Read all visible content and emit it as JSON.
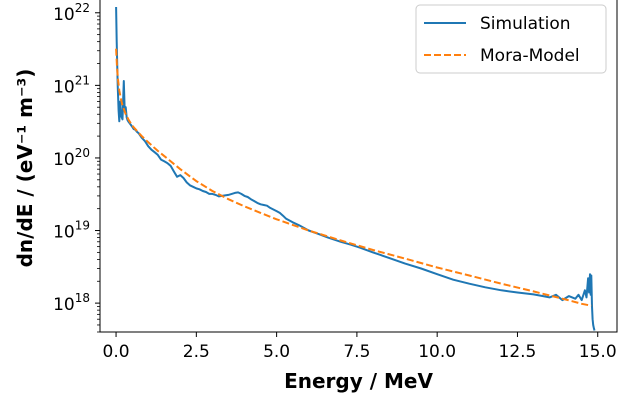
{
  "chart_data": {
    "type": "line",
    "title": "",
    "xlabel": "Energy / MeV",
    "ylabel": "dn/dE / (eV⁻¹ m⁻³)",
    "x_scale": "linear",
    "y_scale": "log",
    "xlim": [
      -0.5,
      15.6
    ],
    "ylim": [
      4e+17,
      1.5e+22
    ],
    "x_ticks": [
      0.0,
      2.5,
      5.0,
      7.5,
      10.0,
      12.5,
      15.0
    ],
    "x_tick_labels": [
      "0.0",
      "2.5",
      "5.0",
      "7.5",
      "10.0",
      "12.5",
      "15.0"
    ],
    "y_ticks": [
      {
        "value": 1e+18,
        "base": "10",
        "exp": "18"
      },
      {
        "value": 1e+19,
        "base": "10",
        "exp": "19"
      },
      {
        "value": 1e+20,
        "base": "10",
        "exp": "20"
      },
      {
        "value": 1e+21,
        "base": "10",
        "exp": "21"
      },
      {
        "value": 1e+22,
        "base": "10",
        "exp": "22"
      }
    ],
    "grid": false,
    "legend": {
      "position": "top-right",
      "entries": [
        {
          "name": "Simulation",
          "color": "#1f77b4",
          "style": "solid"
        },
        {
          "name": "Mora-Model",
          "color": "#ff7f0e",
          "style": "dashed"
        }
      ]
    },
    "series": [
      {
        "name": "Simulation",
        "color": "#1f77b4",
        "style": "solid",
        "x": [
          0.0,
          0.02,
          0.05,
          0.08,
          0.1,
          0.13,
          0.16,
          0.2,
          0.24,
          0.27,
          0.3,
          0.33,
          0.36,
          0.4,
          0.45,
          0.5,
          0.55,
          0.6,
          0.65,
          0.7,
          0.8,
          0.9,
          1.0,
          1.1,
          1.2,
          1.3,
          1.4,
          1.5,
          1.6,
          1.7,
          1.8,
          1.9,
          2.0,
          2.1,
          2.2,
          2.3,
          2.4,
          2.5,
          2.6,
          2.7,
          2.8,
          2.9,
          3.0,
          3.1,
          3.2,
          3.3,
          3.4,
          3.5,
          3.6,
          3.7,
          3.8,
          3.9,
          4.0,
          4.1,
          4.2,
          4.3,
          4.4,
          4.5,
          4.6,
          4.7,
          4.8,
          4.9,
          5.0,
          5.1,
          5.2,
          5.3,
          5.5,
          5.7,
          6.0,
          6.3,
          6.6,
          7.0,
          7.3,
          7.6,
          8.0,
          8.5,
          9.0,
          9.5,
          10.0,
          10.5,
          11.0,
          11.5,
          12.0,
          12.5,
          13.0,
          13.3,
          13.5,
          13.7,
          13.9,
          14.1,
          14.3,
          14.4,
          14.5,
          14.6,
          14.65,
          14.7,
          14.73,
          14.76,
          14.78,
          14.8,
          14.82,
          14.84,
          14.86,
          14.88,
          14.9
        ],
        "y": [
          1.2e+22,
          4e+21,
          1e+21,
          4.5e+20,
          3.2e+20,
          6e+20,
          3.8e+20,
          3.4e+20,
          1.15e+21,
          4.5e+20,
          5e+20,
          3.6e+20,
          3.3e+20,
          3.1e+20,
          2.9e+20,
          2.7e+20,
          2.5e+20,
          2.45e+20,
          2.3e+20,
          2.2e+20,
          1.9e+20,
          1.7e+20,
          1.45e+20,
          1.3e+20,
          1.2e+20,
          1.1e+20,
          9.5e+19,
          9e+19,
          8.5e+19,
          7.8e+19,
          6.5e+19,
          5.5e+19,
          5.8e+19,
          5.3e+19,
          4.6e+19,
          4.2e+19,
          4e+19,
          3.8e+19,
          3.7e+19,
          3.5e+19,
          3.4e+19,
          3.2e+19,
          3.2e+19,
          3.1e+19,
          2.95e+19,
          3e+19,
          3.05e+19,
          3.1e+19,
          3.2e+19,
          3.3e+19,
          3.35e+19,
          3.2e+19,
          3e+19,
          2.9e+19,
          2.7e+19,
          2.55e+19,
          2.4e+19,
          2.3e+19,
          2.25e+19,
          2.2e+19,
          2.05e+19,
          1.95e+19,
          1.85e+19,
          1.75e+19,
          1.6e+19,
          1.45e+19,
          1.3e+19,
          1.18e+19,
          1e+19,
          9e+18,
          8e+18,
          7e+18,
          6.4e+18,
          5.8e+18,
          5e+18,
          4.2e+18,
          3.5e+18,
          3e+18,
          2.5e+18,
          2.1e+18,
          1.85e+18,
          1.65e+18,
          1.5e+18,
          1.4e+18,
          1.32e+18,
          1.25e+18,
          1.2e+18,
          1.3e+18,
          1.1e+18,
          1.25e+18,
          1.15e+18,
          1.3e+18,
          1.1e+18,
          1.5e+18,
          1.2e+18,
          2.2e+18,
          1.4e+18,
          2.5e+18,
          1.3e+18,
          2.4e+18,
          9e+17,
          6e+17,
          5e+17,
          4.5e+17,
          4.2e+17
        ]
      },
      {
        "name": "Mora-Model",
        "color": "#ff7f0e",
        "style": "dashed",
        "x": [
          0.0,
          0.03,
          0.06,
          0.1,
          0.15,
          0.2,
          0.3,
          0.4,
          0.5,
          0.6,
          0.8,
          1.0,
          1.3,
          1.6,
          2.0,
          2.5,
          3.0,
          3.5,
          4.0,
          4.5,
          5.0,
          6.0,
          7.0,
          8.0,
          9.0,
          10.0,
          11.0,
          12.0,
          13.0,
          14.0,
          14.5,
          14.8
        ],
        "y": [
          3.2e+21,
          1.8e+21,
          1.2e+21,
          8.5e+20,
          6.5e+20,
          5.3e+20,
          4e+20,
          3.3e+20,
          2.8e+20,
          2.5e+20,
          2e+20,
          1.65e+20,
          1.25e+20,
          9.8e+19,
          7e+19,
          4.8e+19,
          3.5e+19,
          2.7e+19,
          2.15e+19,
          1.75e+19,
          1.43e+19,
          1e+19,
          7.3e+18,
          5.4e+18,
          4.1e+18,
          3.1e+18,
          2.4e+18,
          1.85e+18,
          1.45e+18,
          1.12e+18,
          9.8e+17,
          9.2e+17
        ]
      }
    ]
  }
}
